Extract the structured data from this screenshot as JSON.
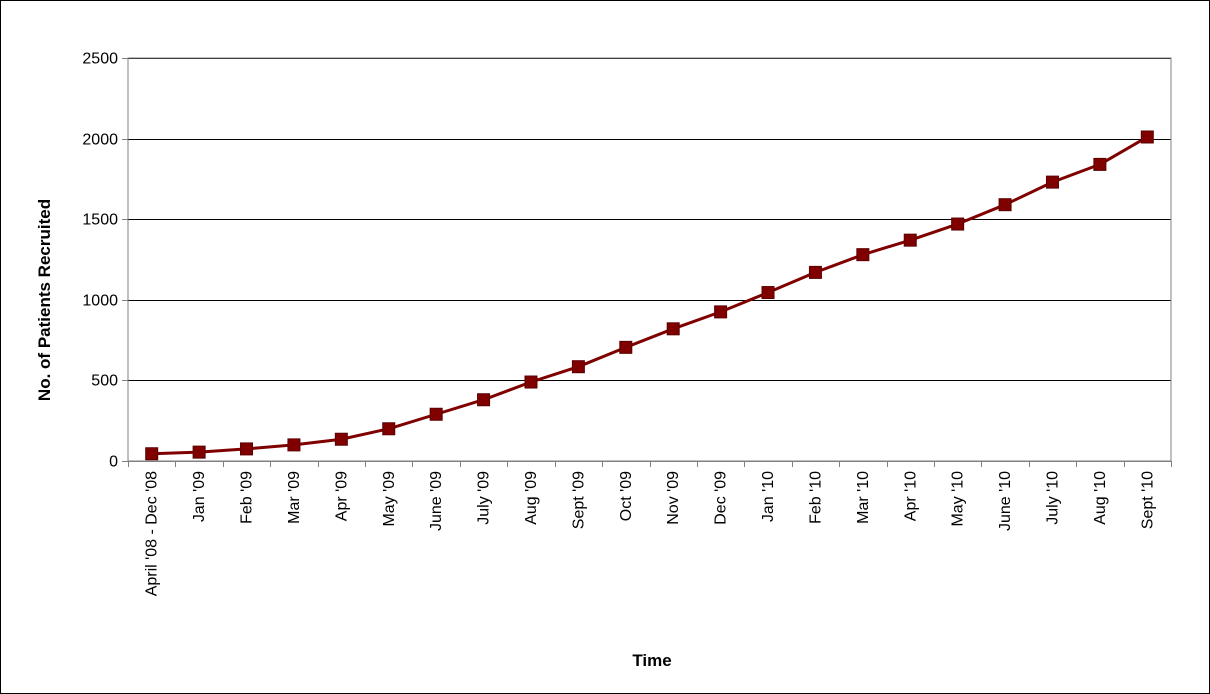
{
  "chart_data": {
    "type": "line",
    "title": "",
    "xlabel": "Time",
    "ylabel": "No. of Patients Recruited",
    "ylim": [
      0,
      2500
    ],
    "yticks": [
      0,
      500,
      1000,
      1500,
      2000,
      2500
    ],
    "grid": true,
    "legend": "none",
    "categories": [
      "April '08 - Dec '08",
      "Jan '09",
      "Feb '09",
      "Mar '09",
      "Apr '09",
      "May '09",
      "June '09",
      "July '09",
      "Aug '09",
      "Sept '09",
      "Oct '09",
      "Nov '09",
      "Dec '09",
      "Jan '10",
      "Feb '10",
      "Mar '10",
      "Apr '10",
      "May '10",
      "June '10",
      "July '10",
      "Aug '10",
      "Sept '10"
    ],
    "series": [
      {
        "values": [
          45,
          55,
          75,
          100,
          135,
          200,
          290,
          380,
          490,
          585,
          705,
          820,
          925,
          1045,
          1170,
          1280,
          1370,
          1470,
          1590,
          1730,
          1840,
          2010
        ]
      }
    ],
    "colors": {
      "line": "#800000",
      "marker": "#800000",
      "grid": "#000000",
      "axis": "#808080"
    }
  }
}
